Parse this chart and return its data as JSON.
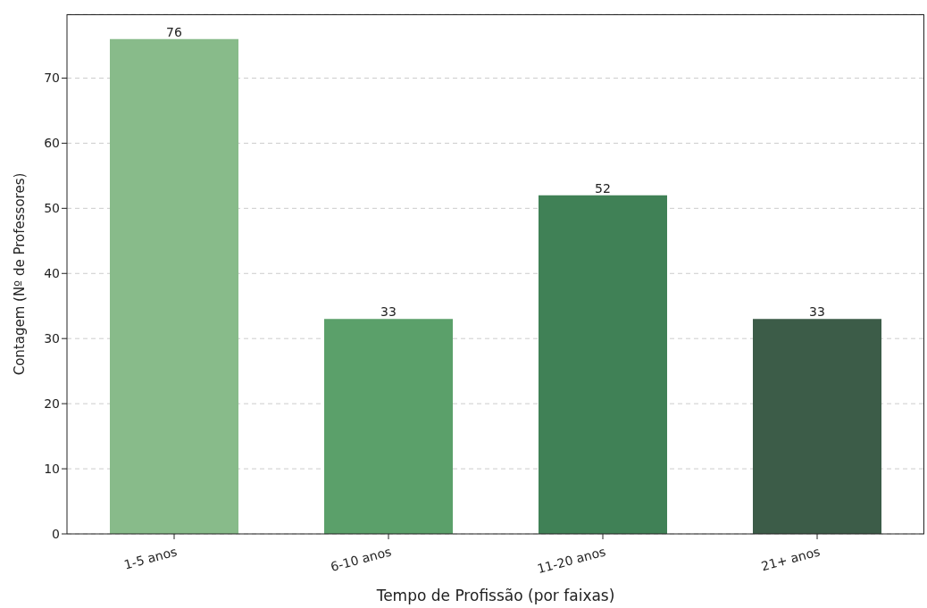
{
  "chart_data": {
    "type": "bar",
    "xlabel": "Tempo de Profissão (por faixas)",
    "ylabel": "Contagem (Nº de Professores)",
    "categories": [
      "1-5 anos",
      "6-10 anos",
      "11-20 anos",
      "21+ anos"
    ],
    "values": [
      76,
      33,
      52,
      33
    ],
    "colors": [
      "#88bb8a",
      "#5ba06a",
      "#408156",
      "#3c5c48"
    ],
    "ylim": [
      0,
      79.8
    ],
    "yticks": [
      0,
      10,
      20,
      30,
      40,
      50,
      60,
      70
    ],
    "grid": "y",
    "data_labels": true
  }
}
